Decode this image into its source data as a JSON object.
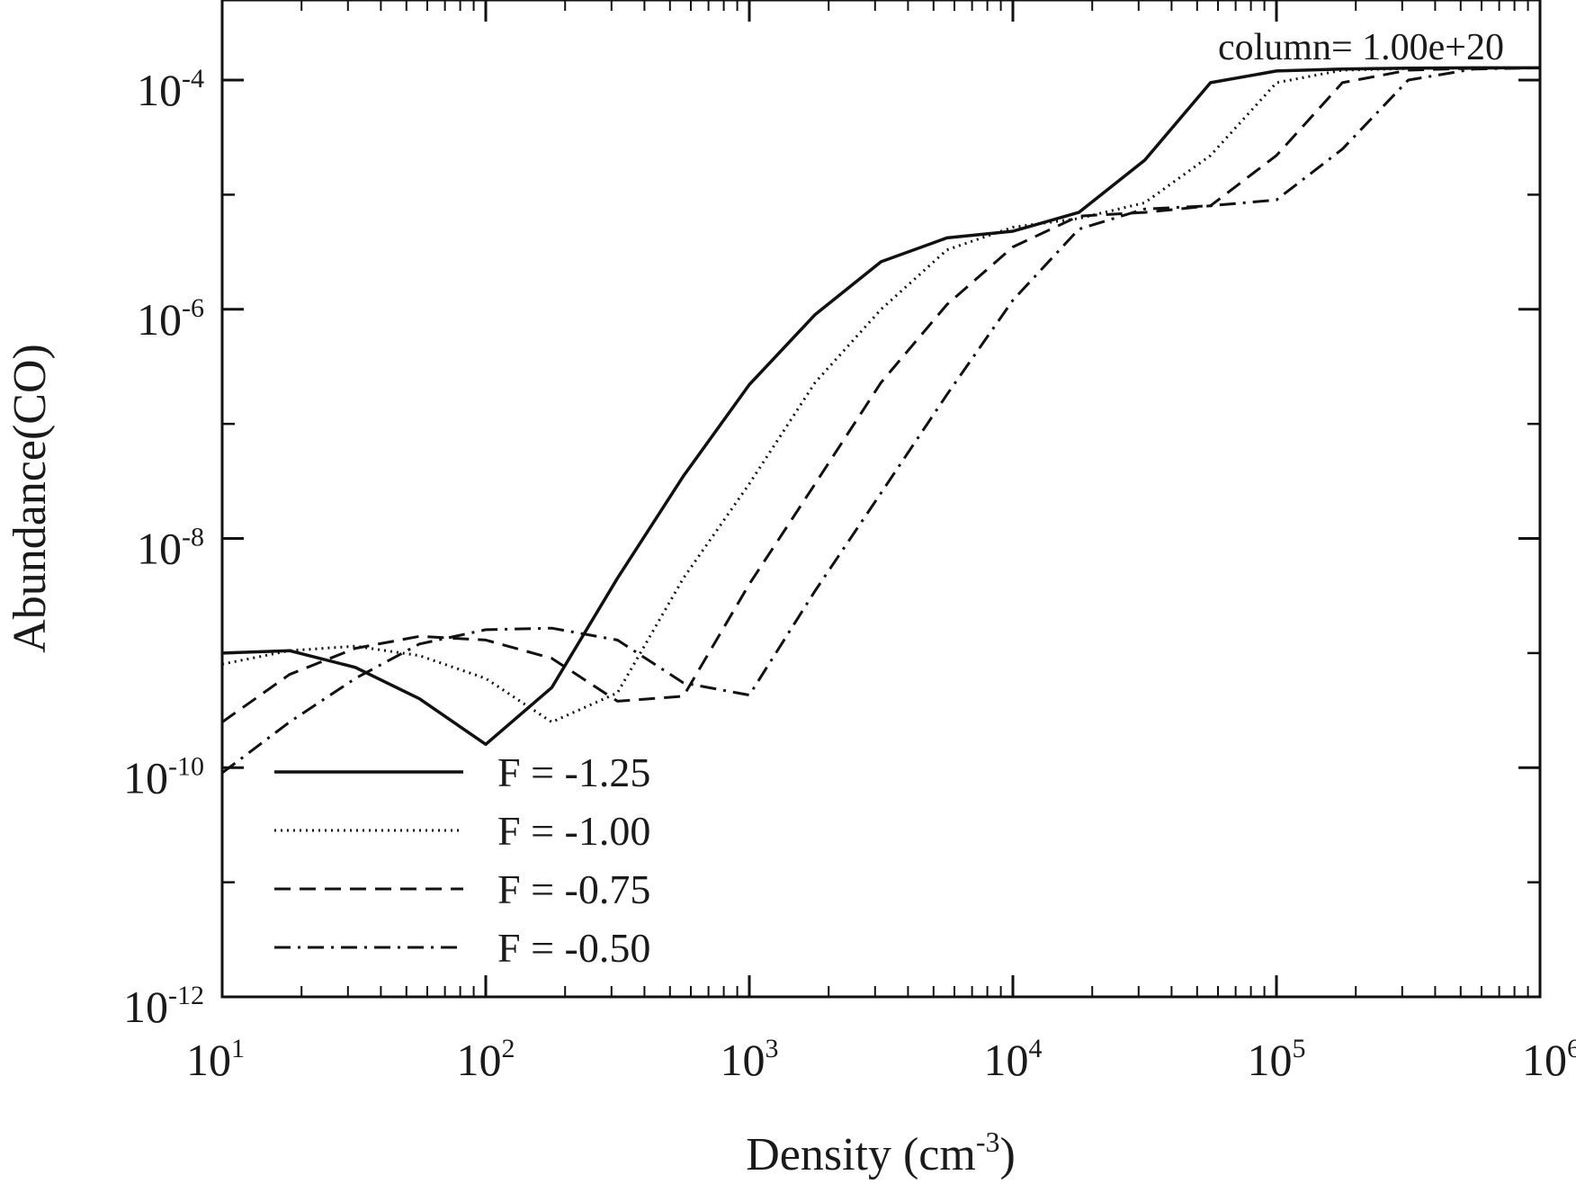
{
  "chart_data": {
    "type": "line",
    "title": "",
    "xlabel": "Density (cm",
    "xlabel_sup": "-3",
    "xlabel_close": ")",
    "ylabel": "Abundance(CO)",
    "xscale": "log",
    "yscale": "log",
    "xlim": [
      10,
      1000000
    ],
    "ylim": [
      1e-12,
      0.0005
    ],
    "grid": false,
    "legend_position": "bottom-left",
    "annotation": "column= 1.00e+20",
    "x_ticks": [
      {
        "value": 10,
        "base": "10",
        "exp": "1"
      },
      {
        "value": 100,
        "base": "10",
        "exp": "2"
      },
      {
        "value": 1000,
        "base": "10",
        "exp": "3"
      },
      {
        "value": 10000,
        "base": "10",
        "exp": "4"
      },
      {
        "value": 100000,
        "base": "10",
        "exp": "5"
      },
      {
        "value": 1000000,
        "base": "10",
        "exp": "6"
      }
    ],
    "y_ticks": [
      {
        "value": 1e-12,
        "base": "10",
        "exp": "-12"
      },
      {
        "value": 1e-10,
        "base": "10",
        "exp": "-10"
      },
      {
        "value": 1e-08,
        "base": "10",
        "exp": "-8"
      },
      {
        "value": 1e-06,
        "base": "10",
        "exp": "-6"
      },
      {
        "value": 0.0001,
        "base": "10",
        "exp": "-4"
      }
    ],
    "y_minor_ticks": [
      1e-11,
      1e-09,
      1e-07,
      1e-05
    ],
    "series": [
      {
        "name": "F = -1.25",
        "style": "solid",
        "x": [
          10,
          18,
          32,
          56,
          100,
          178,
          316,
          562,
          1000,
          1778,
          3162,
          5623,
          10000,
          17783,
          31623,
          56234,
          100000,
          177828,
          316228,
          562341,
          1000000
        ],
        "y": [
          1e-09,
          1.05e-09,
          7.5e-10,
          4e-10,
          1.6e-10,
          5e-10,
          4.5e-09,
          3.5e-08,
          2.2e-07,
          9e-07,
          2.6e-06,
          4.2e-06,
          4.8e-06,
          7e-06,
          2e-05,
          9.5e-05,
          0.00012,
          0.000125,
          0.000127,
          0.000128,
          0.000128
        ]
      },
      {
        "name": "F = -1.00",
        "style": "dotted",
        "x": [
          10,
          18,
          32,
          56,
          100,
          178,
          316,
          562,
          1000,
          1778,
          3162,
          5623,
          10000,
          17783,
          31623,
          56234,
          100000,
          177828,
          316228,
          562341,
          1000000
        ],
        "y": [
          8e-10,
          1.05e-09,
          1.15e-09,
          9.5e-10,
          6e-10,
          2.5e-10,
          4.5e-10,
          4.5e-09,
          3e-08,
          2.3e-07,
          1e-06,
          3.3e-06,
          5.2e-06,
          6.2e-06,
          8.5e-06,
          2.2e-05,
          9.5e-05,
          0.000122,
          0.000126,
          0.000128,
          0.000128
        ]
      },
      {
        "name": "F = -0.75",
        "style": "dashed",
        "x": [
          10,
          18,
          32,
          56,
          100,
          178,
          316,
          562,
          1000,
          1778,
          3162,
          5623,
          10000,
          17783,
          31623,
          56234,
          100000,
          177828,
          316228,
          562341,
          1000000
        ],
        "y": [
          2.5e-10,
          6.5e-10,
          1.1e-09,
          1.4e-09,
          1.3e-09,
          9e-10,
          3.8e-10,
          4.2e-10,
          4e-09,
          3e-08,
          2.3e-07,
          1.1e-06,
          3.5e-06,
          6.5e-06,
          7e-06,
          8e-06,
          2.2e-05,
          9.5e-05,
          0.000122,
          0.000127,
          0.000128
        ]
      },
      {
        "name": "F = -0.50",
        "style": "dashdot",
        "x": [
          10,
          18,
          32,
          56,
          100,
          178,
          316,
          562,
          1000,
          1778,
          3162,
          5623,
          10000,
          17783,
          31623,
          56234,
          100000,
          177828,
          316228,
          562341,
          1000000
        ],
        "y": [
          9e-11,
          2.5e-10,
          6e-10,
          1.2e-09,
          1.6e-09,
          1.65e-09,
          1.3e-09,
          5.5e-10,
          4.3e-10,
          3.5e-09,
          2.5e-08,
          1.8e-07,
          1.2e-06,
          5e-06,
          7.5e-06,
          8e-06,
          9e-06,
          2.5e-05,
          0.0001,
          0.000125,
          0.000128
        ]
      }
    ]
  }
}
